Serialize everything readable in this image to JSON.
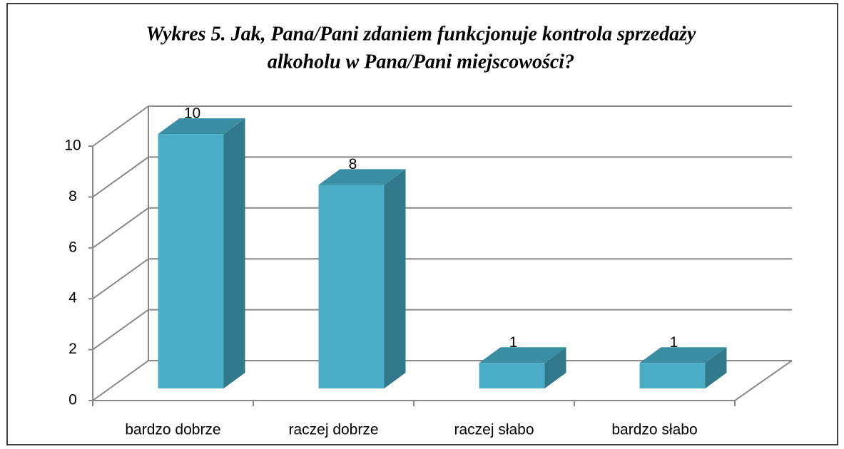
{
  "chart_data": {
    "type": "bar3d",
    "title": [
      "Wykres 5. Jak, Pana/Pani zdaniem funkcjonuje kontrola sprzedaży",
      "alkoholu w Pana/Pani miejscowości?"
    ],
    "categories": [
      "bardzo dobrze",
      "raczej dobrze",
      "raczej słabo",
      "bardzo słabo"
    ],
    "values": [
      10,
      8,
      1,
      1
    ],
    "color": "#4bacc6",
    "ylim": [
      0,
      10
    ],
    "yticks": [
      0,
      2,
      4,
      6,
      8,
      10
    ],
    "grid": true
  }
}
